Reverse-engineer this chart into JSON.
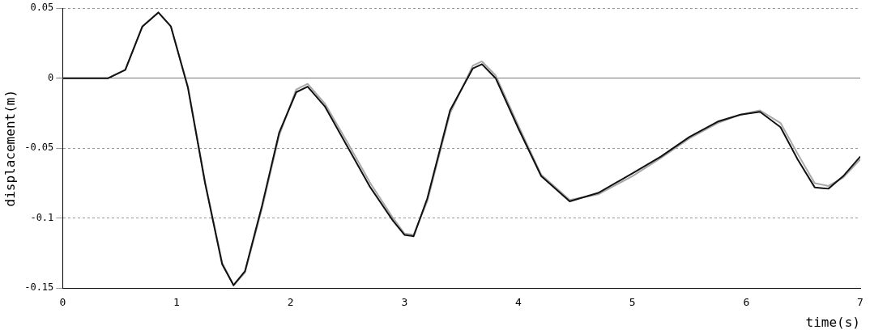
{
  "chart_data": {
    "type": "line",
    "xlabel": "time(s)",
    "ylabel": "displacement(m)",
    "xlim": [
      0,
      7
    ],
    "xticks": [
      0,
      1,
      2,
      3,
      4,
      5,
      6,
      7
    ],
    "ylim": [
      -0.15,
      0.05
    ],
    "yticks": [
      0.05,
      0,
      -0.05,
      -0.1,
      -0.15
    ],
    "grid": "y",
    "legend": false,
    "marker": "none",
    "line_style": "solid",
    "series": [
      {
        "color": "#111111",
        "x": [
          0,
          0.4,
          0.55,
          0.7,
          0.84,
          0.95,
          1.1,
          1.25,
          1.4,
          1.5,
          1.6,
          1.75,
          1.9,
          2.05,
          2.15,
          2.3,
          2.5,
          2.7,
          2.9,
          3.0,
          3.08,
          3.2,
          3.4,
          3.6,
          3.68,
          3.8,
          4.0,
          4.2,
          4.45,
          4.7,
          5.0,
          5.25,
          5.5,
          5.75,
          5.95,
          6.12,
          6.3,
          6.45,
          6.6,
          6.72,
          6.85,
          7.0
        ],
        "values": [
          0,
          0,
          0.006,
          0.037,
          0.047,
          0.037,
          -0.007,
          -0.075,
          -0.133,
          -0.148,
          -0.138,
          -0.091,
          -0.039,
          -0.01,
          -0.006,
          -0.02,
          -0.049,
          -0.078,
          -0.102,
          -0.112,
          -0.113,
          -0.086,
          -0.023,
          0.007,
          0.01,
          0.0,
          -0.036,
          -0.07,
          -0.088,
          -0.082,
          -0.068,
          -0.056,
          -0.042,
          -0.031,
          -0.026,
          -0.024,
          -0.035,
          -0.058,
          -0.078,
          -0.079,
          -0.07,
          -0.056
        ]
      },
      {
        "color": "#a8a8a8",
        "x": [
          0,
          0.4,
          0.55,
          0.7,
          0.84,
          0.95,
          1.1,
          1.25,
          1.4,
          1.5,
          1.6,
          1.75,
          1.9,
          2.05,
          2.15,
          2.3,
          2.5,
          2.7,
          2.9,
          3.0,
          3.08,
          3.2,
          3.4,
          3.6,
          3.68,
          3.8,
          4.0,
          4.2,
          4.45,
          4.7,
          5.0,
          5.25,
          5.5,
          5.75,
          5.95,
          6.12,
          6.3,
          6.45,
          6.6,
          6.72,
          6.85,
          7.0
        ],
        "values": [
          0,
          0,
          0.006,
          0.037,
          0.047,
          0.037,
          -0.006,
          -0.074,
          -0.132,
          -0.148,
          -0.139,
          -0.093,
          -0.041,
          -0.008,
          -0.004,
          -0.018,
          -0.046,
          -0.075,
          -0.1,
          -0.111,
          -0.112,
          -0.088,
          -0.025,
          0.009,
          0.012,
          0.002,
          -0.034,
          -0.069,
          -0.087,
          -0.083,
          -0.07,
          -0.057,
          -0.043,
          -0.032,
          -0.026,
          -0.023,
          -0.032,
          -0.054,
          -0.075,
          -0.077,
          -0.071,
          -0.058
        ]
      }
    ]
  }
}
